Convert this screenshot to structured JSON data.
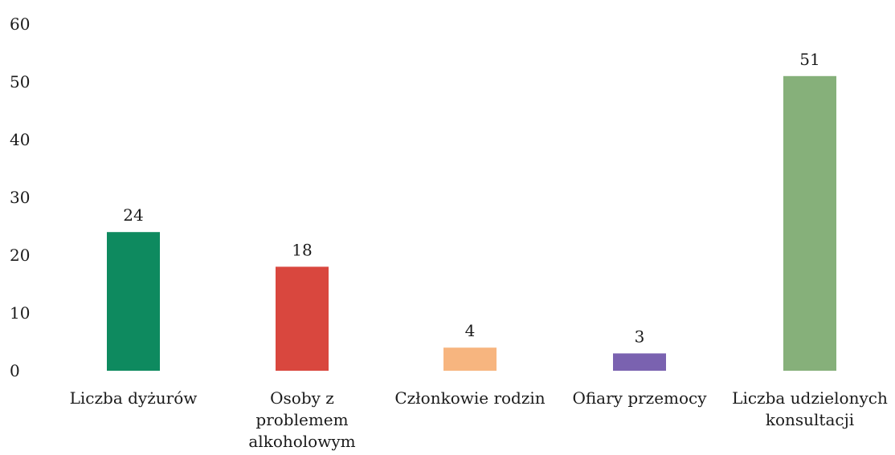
{
  "chart_data": {
    "type": "bar",
    "title": "",
    "xlabel": "",
    "ylabel": "",
    "ylim": [
      0,
      60
    ],
    "yticks": [
      0,
      10,
      20,
      30,
      40,
      50,
      60
    ],
    "grid": false,
    "categories": [
      [
        "Liczba dyżurów"
      ],
      [
        "Osoby z",
        "problemem",
        "alkoholowym"
      ],
      [
        "Członkowie rodzin"
      ],
      [
        "Ofiary przemocy"
      ],
      [
        "Liczba udzielonych",
        "konsultacji"
      ]
    ],
    "values": [
      24,
      18,
      4,
      3,
      51
    ],
    "data_labels": [
      "24",
      "18",
      "4",
      "3",
      "51"
    ],
    "colors": [
      "#0e8a5f",
      "#d9473e",
      "#f7b57f",
      "#7a62b0",
      "#86b07a"
    ]
  }
}
